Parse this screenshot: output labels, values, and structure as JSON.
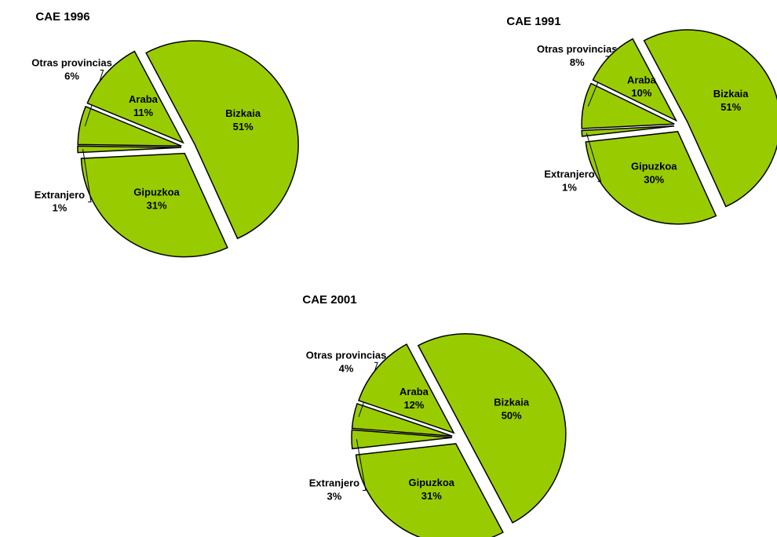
{
  "chart_data": [
    {
      "type": "pie",
      "title": "CAE 1996",
      "color": "#99cc00",
      "categories": [
        "Bizkaia",
        "Gipuzkoa",
        "Extranjero",
        "Otras provincias",
        "Araba"
      ],
      "values": [
        51,
        31,
        1,
        6,
        11
      ],
      "value_labels": [
        "51%",
        "31%",
        "1%",
        "6%",
        "11%"
      ]
    },
    {
      "type": "pie",
      "title": "CAE 1991",
      "color": "#99cc00",
      "categories": [
        "Bizkaia",
        "Gipuzkoa",
        "Extranjero",
        "Otras provincias",
        "Araba"
      ],
      "values": [
        51,
        30,
        1,
        8,
        10
      ],
      "value_labels": [
        "51%",
        "30%",
        "1%",
        "8%",
        "10%"
      ]
    },
    {
      "type": "pie",
      "title": "CAE 2001",
      "color": "#99cc00",
      "categories": [
        "Bizkaia",
        "Gipuzkoa",
        "Extranjero",
        "Otras provincias",
        "Araba"
      ],
      "values": [
        50,
        31,
        3,
        4,
        12
      ],
      "value_labels": [
        "50%",
        "31%",
        "3%",
        "4%",
        "12%"
      ]
    }
  ]
}
